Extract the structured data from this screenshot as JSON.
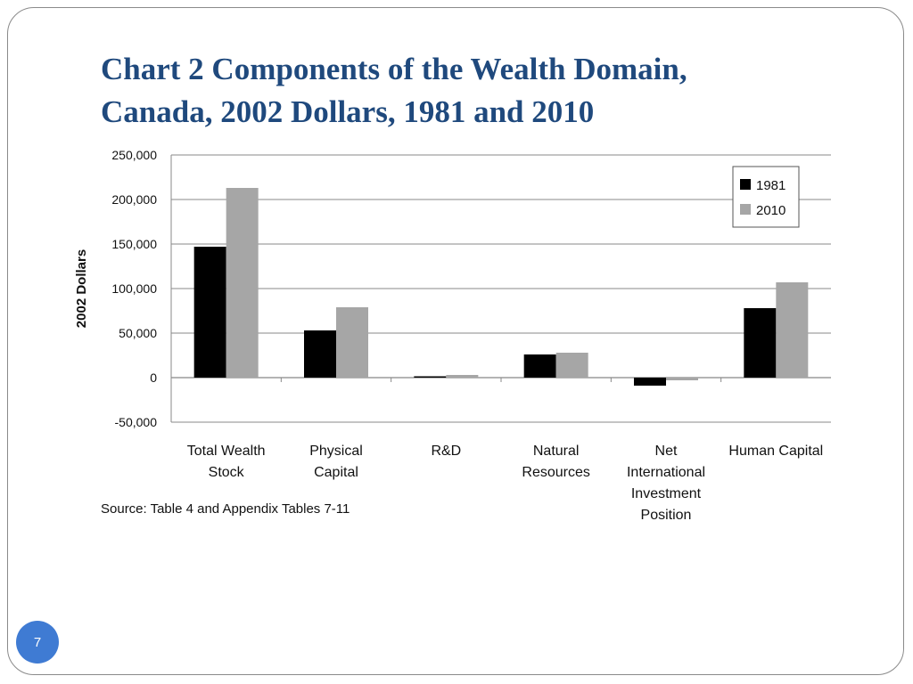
{
  "slide": {
    "title_lines": [
      "Chart 2 Components of the Wealth Domain,",
      "Canada, 2002 Dollars, 1981 and 2010"
    ],
    "source_note": "Source: Table 4 and Appendix Tables 7-11",
    "page_number": "7"
  },
  "colors": {
    "title": "#1f497d",
    "series_1981": "#000000",
    "series_2010": "#a6a6a6",
    "gridline": "#888888",
    "page_badge": "#3f7bd3"
  },
  "chart_data": {
    "type": "bar",
    "title": "",
    "xlabel": "",
    "ylabel": "2002 Dollars",
    "ylim": [
      -50000,
      250000
    ],
    "yticks": [
      250000,
      200000,
      150000,
      100000,
      50000,
      0,
      -50000
    ],
    "ytick_labels": [
      "250,000",
      "200,000",
      "150,000",
      "100,000",
      "50,000",
      "0",
      "-50,000"
    ],
    "grid": true,
    "legend_position": "top-right",
    "categories": [
      [
        "Total Wealth",
        "Stock"
      ],
      [
        "Physical",
        "Capital"
      ],
      [
        "R&D"
      ],
      [
        "Natural",
        "Resources"
      ],
      [
        "Net",
        "International",
        "Investment",
        "Position"
      ],
      [
        "Human Capital"
      ]
    ],
    "series": [
      {
        "name": "1981",
        "color": "#000000",
        "values": [
          147000,
          53000,
          1500,
          26000,
          -9000,
          78000
        ]
      },
      {
        "name": "2010",
        "color": "#a6a6a6",
        "values": [
          213000,
          79000,
          3000,
          28000,
          -3000,
          107000
        ]
      }
    ]
  }
}
